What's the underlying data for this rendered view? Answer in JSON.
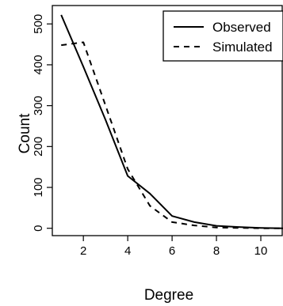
{
  "chart_data": {
    "type": "line",
    "xlabel": "Degree",
    "ylabel": "Count",
    "xlim": [
      0.6,
      11.0
    ],
    "ylim": [
      -18,
      545
    ],
    "x_ticks": [
      2,
      4,
      6,
      8,
      10
    ],
    "x_tick_labels": [
      "2",
      "4",
      "6",
      "8",
      "10"
    ],
    "y_ticks": [
      0,
      100,
      200,
      300,
      400,
      500
    ],
    "y_tick_labels": [
      "0",
      "100",
      "200",
      "300",
      "400",
      "500"
    ],
    "grid": false,
    "legend_position": "top-right",
    "series": [
      {
        "name": "Observed",
        "line_style": "solid",
        "color": "#000000",
        "x": [
          1,
          2,
          3,
          4,
          5,
          6,
          7,
          8,
          9,
          10,
          11
        ],
        "y": [
          522,
          395,
          265,
          128,
          85,
          30,
          15,
          6,
          3,
          1,
          0
        ]
      },
      {
        "name": "Simulated",
        "line_style": "dashed",
        "color": "#000000",
        "x": [
          1,
          2,
          3,
          4,
          5,
          6,
          7,
          8,
          9,
          10,
          11
        ],
        "y": [
          448,
          455,
          300,
          145,
          55,
          15,
          7,
          2,
          1,
          0,
          0
        ]
      }
    ]
  }
}
